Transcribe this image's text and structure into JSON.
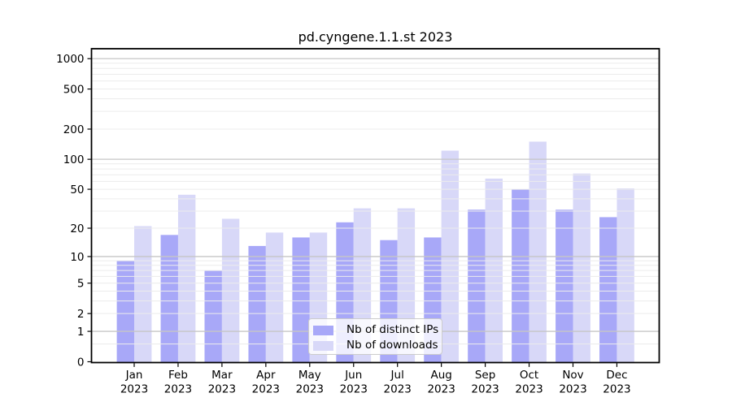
{
  "chart_data": {
    "type": "bar",
    "title": "pd.cyngene.1.1.st 2023",
    "categories": [
      "Jan",
      "Feb",
      "Mar",
      "Apr",
      "May",
      "Jun",
      "Jul",
      "Aug",
      "Sep",
      "Oct",
      "Nov",
      "Dec"
    ],
    "category_year": "2023",
    "series": [
      {
        "name": "Nb of distinct IPs",
        "color": "#a8a8f8",
        "values": [
          9,
          17,
          7,
          13,
          16,
          23,
          15,
          16,
          31,
          50,
          31,
          26
        ]
      },
      {
        "name": "Nb of downloads",
        "color": "#d8d8f8",
        "values": [
          21,
          44,
          25,
          18,
          18,
          32,
          32,
          122,
          64,
          150,
          72,
          51
        ]
      }
    ],
    "yscale": "log1p",
    "yticks": [
      0,
      1,
      2,
      5,
      10,
      20,
      50,
      100,
      200,
      500,
      1000
    ],
    "ylim": [
      0,
      1280
    ],
    "xlabel": "",
    "ylabel": "",
    "grid": true,
    "legend_position": "lower-center",
    "colors": {
      "bar_distinct_ips": "#a8a8f8",
      "bar_downloads": "#d8d8f8",
      "major_grid": "#c6c6c6",
      "minor_grid": "#ececec",
      "axis": "#000000",
      "legend_border": "#cccccc"
    }
  }
}
